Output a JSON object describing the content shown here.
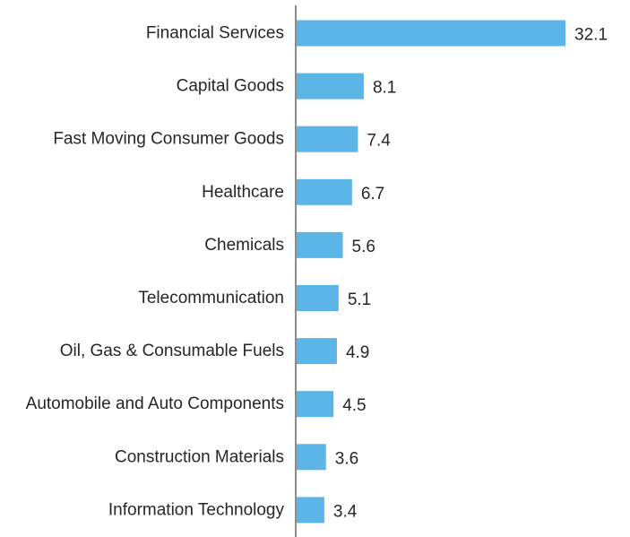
{
  "colors": {
    "bar": "#5bb5e6",
    "axis": "#8c8c8c",
    "text": "#262626"
  },
  "chart_data": {
    "type": "bar",
    "orientation": "horizontal",
    "categories": [
      "Financial Services",
      "Capital Goods",
      "Fast Moving Consumer Goods",
      "Healthcare",
      "Chemicals",
      "Telecommunication",
      "Oil, Gas & Consumable Fuels",
      "Automobile and Auto Components",
      "Construction Materials",
      "Information Technology"
    ],
    "values": [
      32.1,
      8.1,
      7.4,
      6.7,
      5.6,
      5.1,
      4.9,
      4.5,
      3.6,
      3.4
    ],
    "value_labels": [
      "32.1",
      "8.1",
      "7.4",
      "6.7",
      "5.6",
      "5.1",
      "4.9",
      "4.5",
      "3.6",
      "3.4"
    ],
    "title": "",
    "xlabel": "",
    "ylabel": "",
    "xlim": [
      0,
      32.1
    ],
    "grid": false,
    "legend": "none"
  }
}
